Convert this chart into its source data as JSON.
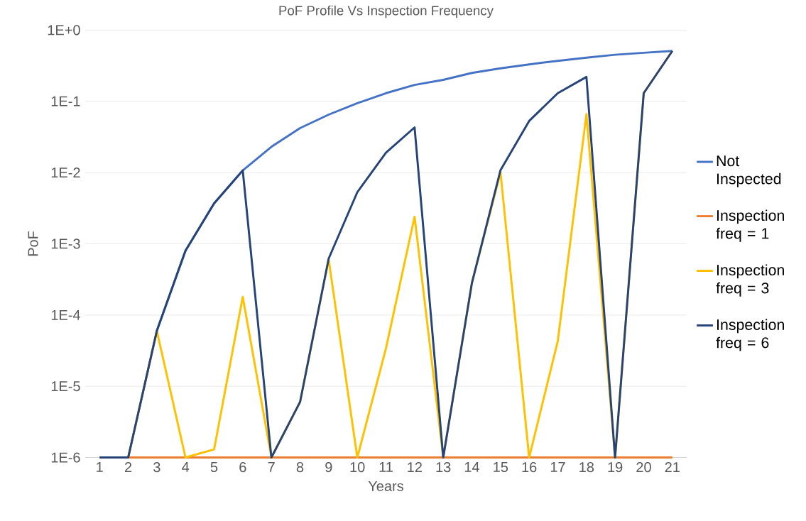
{
  "chart_data": {
    "type": "line",
    "title": "PoF Profile Vs Inspection Frequency",
    "xlabel": "Years",
    "ylabel": "PoF",
    "categories": [
      "1",
      "2",
      "3",
      "4",
      "5",
      "6",
      "7",
      "8",
      "9",
      "10",
      "11",
      "12",
      "13",
      "14",
      "15",
      "16",
      "17",
      "18",
      "19",
      "20",
      "21"
    ],
    "log": "y",
    "ylim": [
      1e-06,
      1
    ],
    "yticks": [
      {
        "value": 1e-06,
        "label": "1E-6"
      },
      {
        "value": 1e-05,
        "label": "1E-5"
      },
      {
        "value": 0.0001,
        "label": "1E-4"
      },
      {
        "value": 0.001,
        "label": "1E-3"
      },
      {
        "value": 0.01,
        "label": "1E-2"
      },
      {
        "value": 0.1,
        "label": "1E-1"
      },
      {
        "value": 1,
        "label": "1E+0"
      }
    ],
    "grid": "y",
    "legend": "right",
    "marker": "none",
    "line_style": "solid",
    "series": [
      {
        "name": "Not Inspected",
        "color": "#4472c4",
        "values": [
          1e-06,
          1e-06,
          6e-05,
          0.0008,
          0.0037,
          0.0107,
          0.023,
          0.042,
          0.065,
          0.094,
          0.13,
          0.17,
          0.2,
          0.25,
          0.29,
          0.33,
          0.37,
          0.41,
          0.45,
          0.48,
          0.51
        ]
      },
      {
        "name": "Inspection freq = 1",
        "color": "#ed7d31",
        "values": [
          1e-06,
          1e-06,
          1e-06,
          1e-06,
          1e-06,
          1e-06,
          1e-06,
          1e-06,
          1e-06,
          1e-06,
          1e-06,
          1e-06,
          1e-06,
          1e-06,
          1e-06,
          1e-06,
          1e-06,
          1e-06,
          1e-06,
          1e-06,
          1e-06
        ]
      },
      {
        "name": "Inspection freq = 3",
        "color": "#ffc000",
        "values": [
          1e-06,
          1e-06,
          6e-05,
          1e-06,
          1.3e-06,
          0.00018,
          1e-06,
          6e-06,
          0.0006,
          1e-06,
          3.4e-05,
          0.0024,
          1e-06,
          0.00028,
          0.01,
          1e-06,
          4.3e-05,
          0.066,
          1e-06,
          0.13,
          0.51
        ]
      },
      {
        "name": "Inspection freq = 6",
        "color": "#264478",
        "values": [
          1e-06,
          1e-06,
          6e-05,
          0.0008,
          0.0037,
          0.0107,
          1e-06,
          6e-06,
          0.00062,
          0.0053,
          0.019,
          0.043,
          1e-06,
          0.00028,
          0.0108,
          0.053,
          0.13,
          0.22,
          1e-06,
          0.13,
          0.51
        ]
      }
    ]
  }
}
